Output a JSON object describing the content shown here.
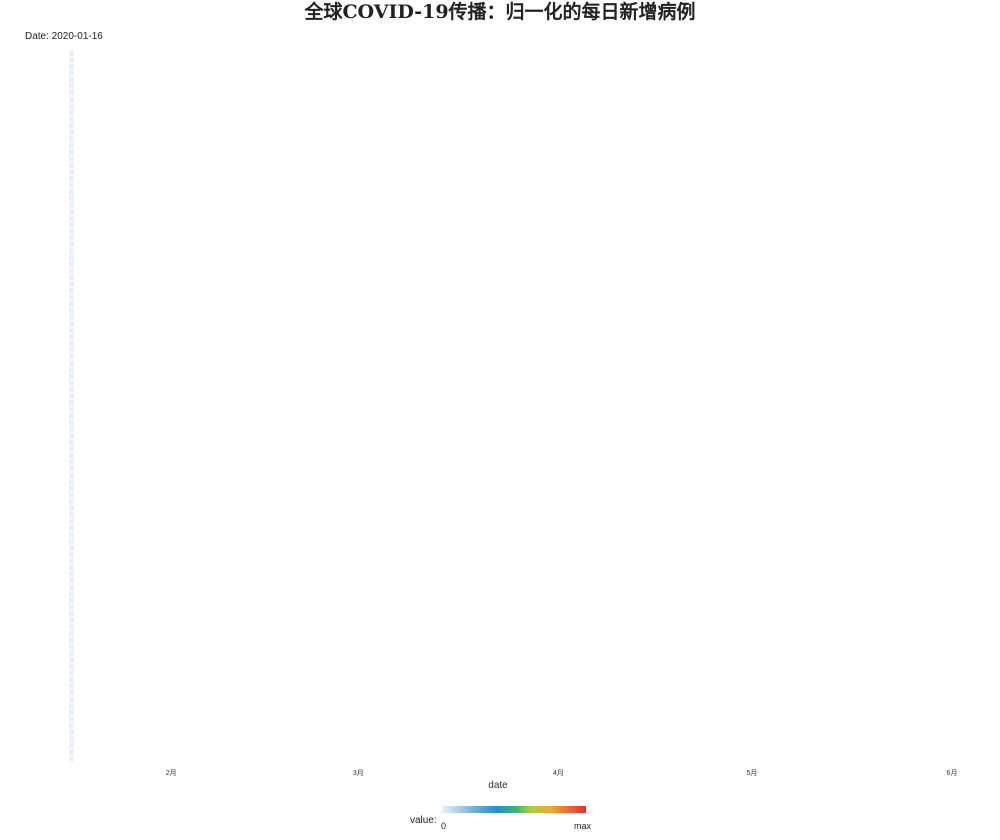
{
  "title": "全球COVID-19传播：归一化的每日新增病例",
  "subtitle": "Date: 2020-01-16",
  "chart_data": {
    "type": "heatmap",
    "title": "全球COVID-19传播：归一化的每日新增病例",
    "subtitle": "Date: 2020-01-16",
    "xlabel": "date",
    "x_tick_labels": [
      "2月",
      "3月",
      "4月",
      "5月",
      "6月"
    ],
    "x_tick_dates": [
      "2020-02-01",
      "2020-03-01",
      "2020-04-01",
      "2020-05-01",
      "2020-06-01"
    ],
    "xlim": [
      "2020-01-16",
      "2020-06-01"
    ],
    "frame_date": "2020-01-16",
    "rows_count": 108,
    "column_values": "all rows at 0 (lowest color) for 2020-01-16",
    "grid": false,
    "legend": {
      "title": "value:",
      "min_label": "0",
      "max_label": "max",
      "placement": "bottom-center",
      "colors": [
        "#e8f1f9",
        "#1f8fd0",
        "#3fb66b",
        "#b5cc3b",
        "#f0a92e",
        "#d9372c"
      ]
    }
  }
}
